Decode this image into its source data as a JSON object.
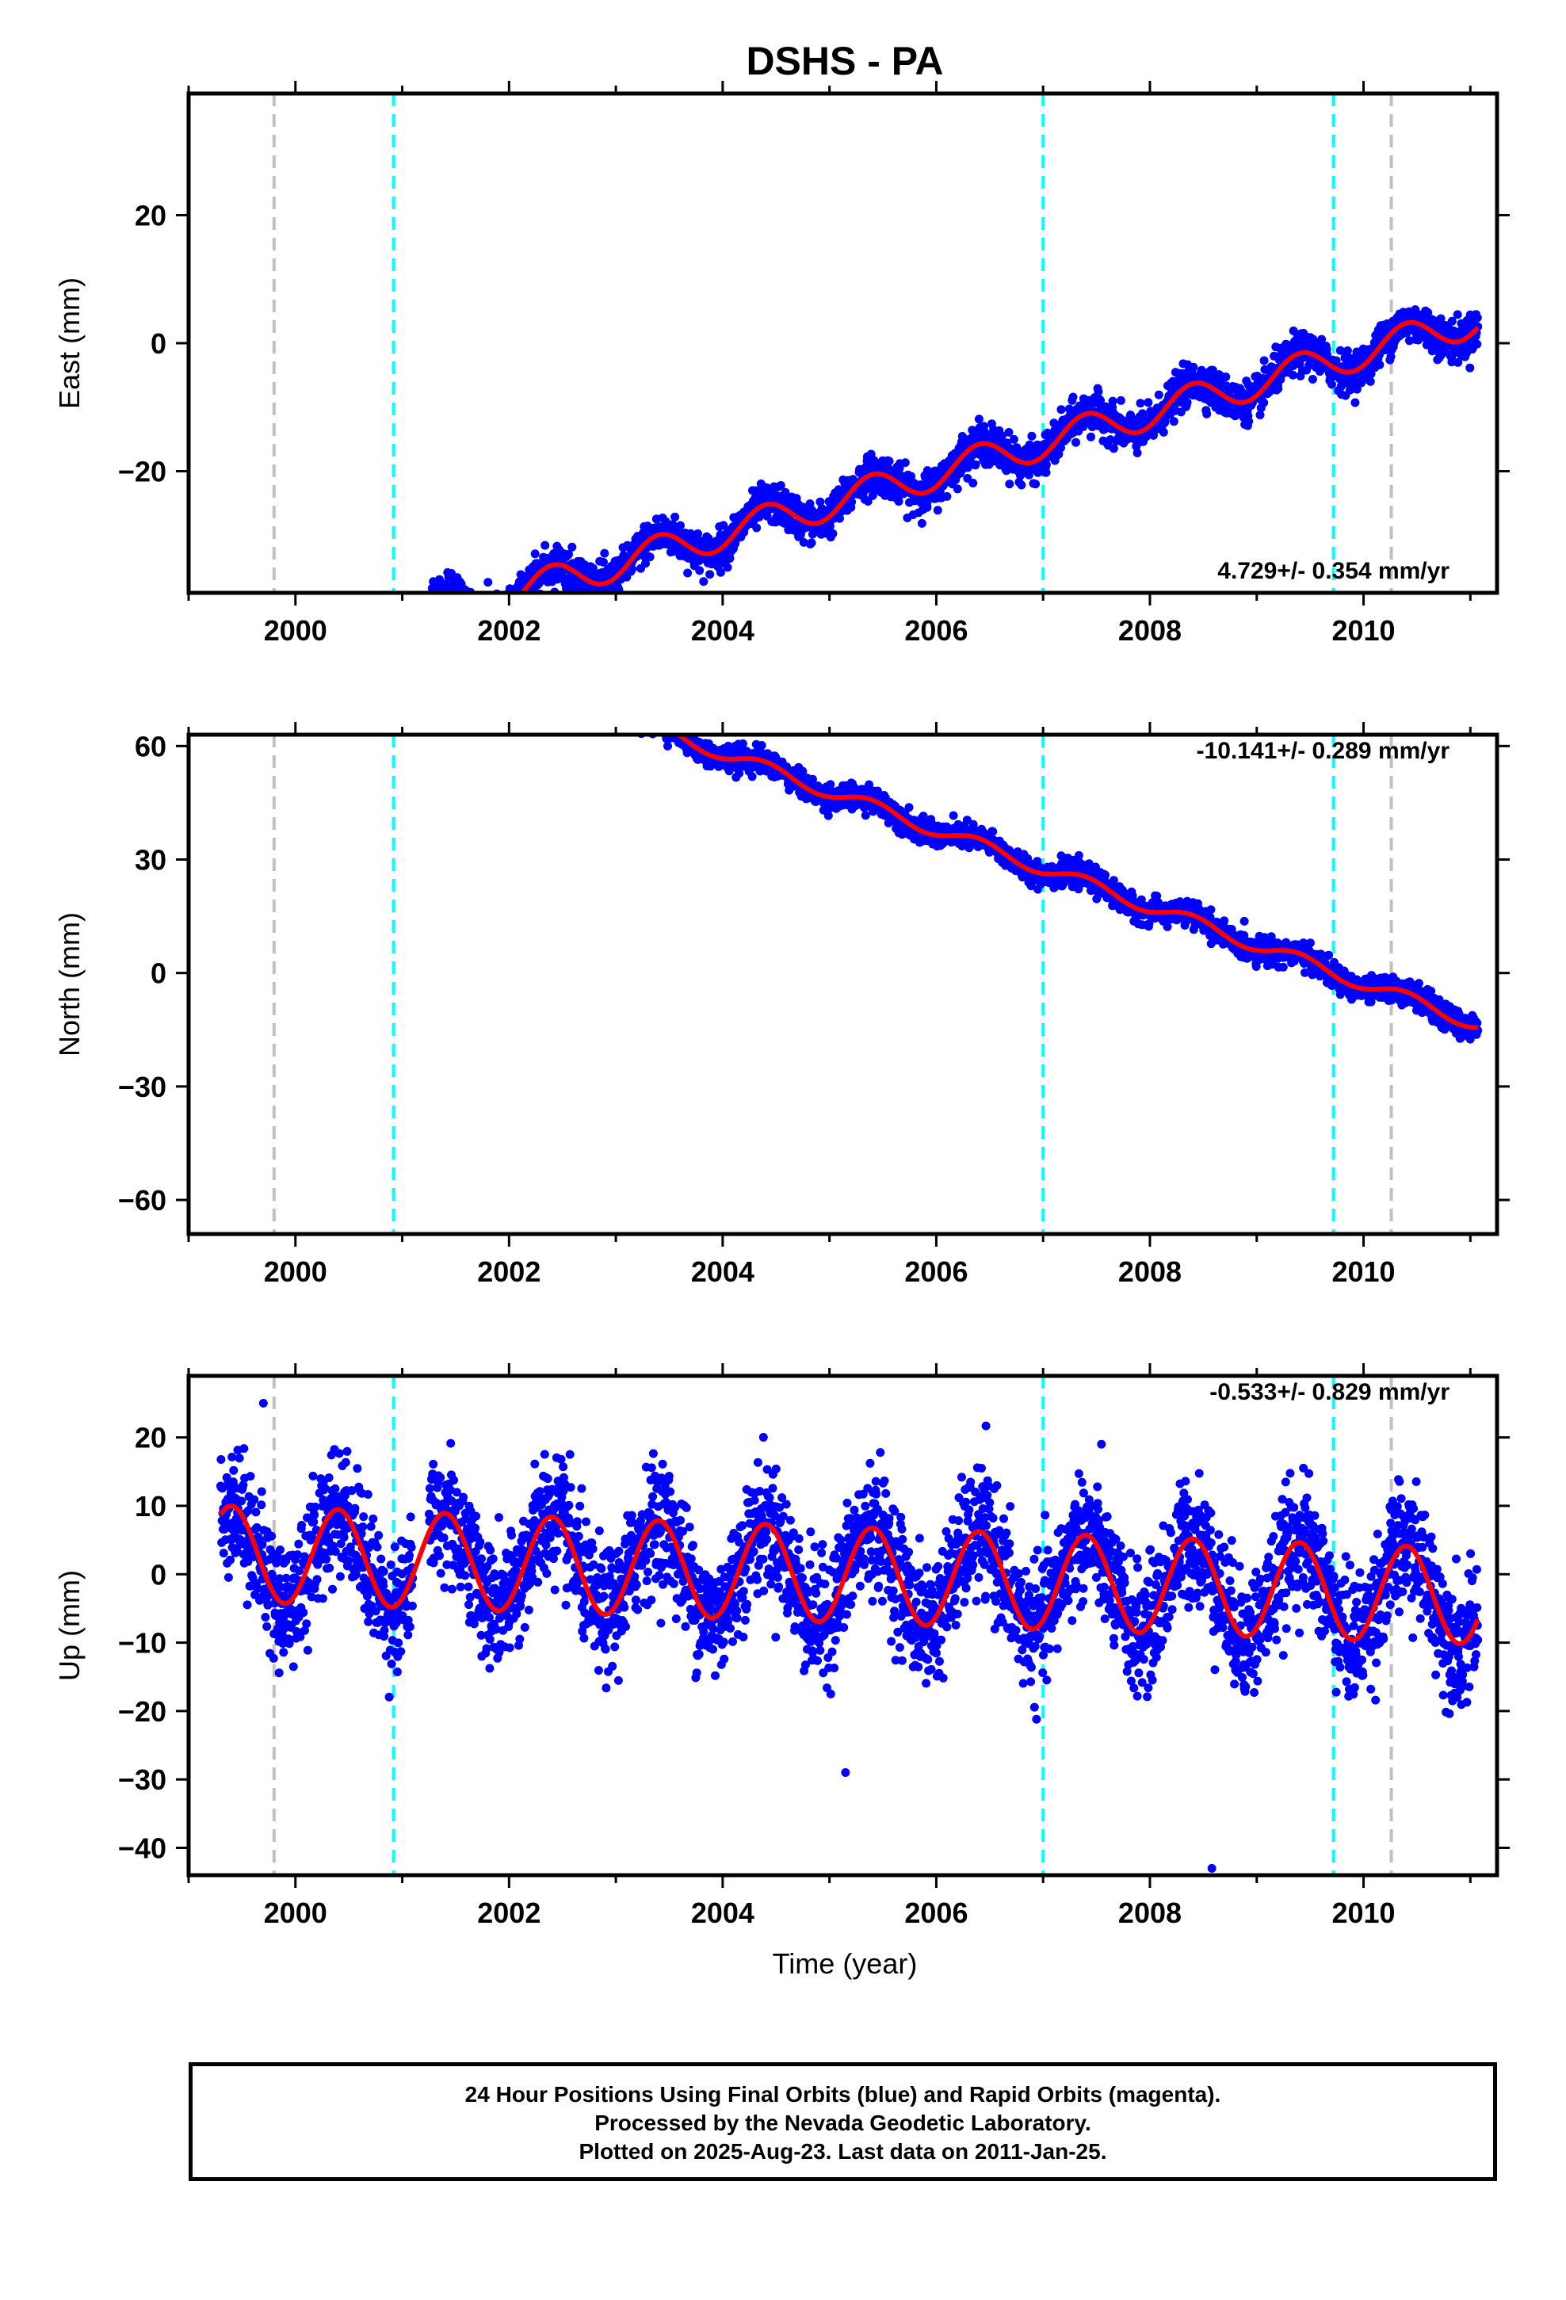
{
  "title": "DSHS - PA",
  "xlabel": "Time (year)",
  "caption": [
    "24 Hour Positions Using Final Orbits (blue) and Rapid Orbits (magenta).",
    "Processed by the Nevada Geodetic Laboratory.",
    "Plotted on 2025-Aug-23. Last data on 2011-Jan-25."
  ],
  "colors": {
    "points": "#0000ff",
    "model": "#ff0000",
    "equipment_change": "#00ffff",
    "other_event": "#c0c0c0"
  },
  "chart_data": [
    {
      "type": "scatter",
      "name": "east",
      "ylabel": "East (mm)",
      "rate_text": "4.729+/- 0.354 mm/yr",
      "xlim": [
        1999.0,
        2011.25
      ],
      "ylim": [
        -39,
        39
      ],
      "xticks": [
        2000,
        2002,
        2004,
        2006,
        2008,
        2010
      ],
      "yticks": [
        -20,
        0,
        20
      ],
      "rate": 4.729,
      "intercept": -25.0,
      "seasonal_amp": 2.6,
      "scatter": 1.5,
      "steps": [],
      "outliers": []
    },
    {
      "type": "scatter",
      "name": "north",
      "ylabel": "North (mm)",
      "rate_text": "-10.141+/- 0.289 mm/yr",
      "xlim": [
        1999.0,
        2011.25
      ],
      "ylim": [
        -69,
        63
      ],
      "xticks": [
        2000,
        2002,
        2004,
        2006,
        2008,
        2010
      ],
      "yticks": [
        -60,
        -30,
        0,
        30,
        60
      ],
      "rate": -10.141,
      "intercept": 48.0,
      "seasonal_amp": 1.8,
      "scatter": 1.6,
      "steps": [],
      "outliers": []
    },
    {
      "type": "scatter",
      "name": "up",
      "ylabel": "Up (mm)",
      "rate_text": "-0.533+/- 0.829 mm/yr",
      "xlim": [
        1999.0,
        2011.25
      ],
      "ylim": [
        -44,
        29
      ],
      "xticks": [
        2000,
        2002,
        2004,
        2006,
        2008,
        2010
      ],
      "yticks": [
        -40,
        -30,
        -20,
        -10,
        0,
        10,
        20
      ],
      "rate": -0.533,
      "intercept": 0.0,
      "seasonal_amp": 7.0,
      "scatter": 4.5,
      "steps": [],
      "outliers": [
        [
          1999.7,
          25
        ],
        [
          2005.15,
          -29
        ],
        [
          2008.58,
          -43
        ]
      ]
    }
  ],
  "events": {
    "equipment_change": [
      2000.92,
      2007.0,
      2009.72
    ],
    "other_event": [
      1999.8,
      2010.26
    ]
  },
  "data_span": [
    1999.3,
    2011.07
  ]
}
